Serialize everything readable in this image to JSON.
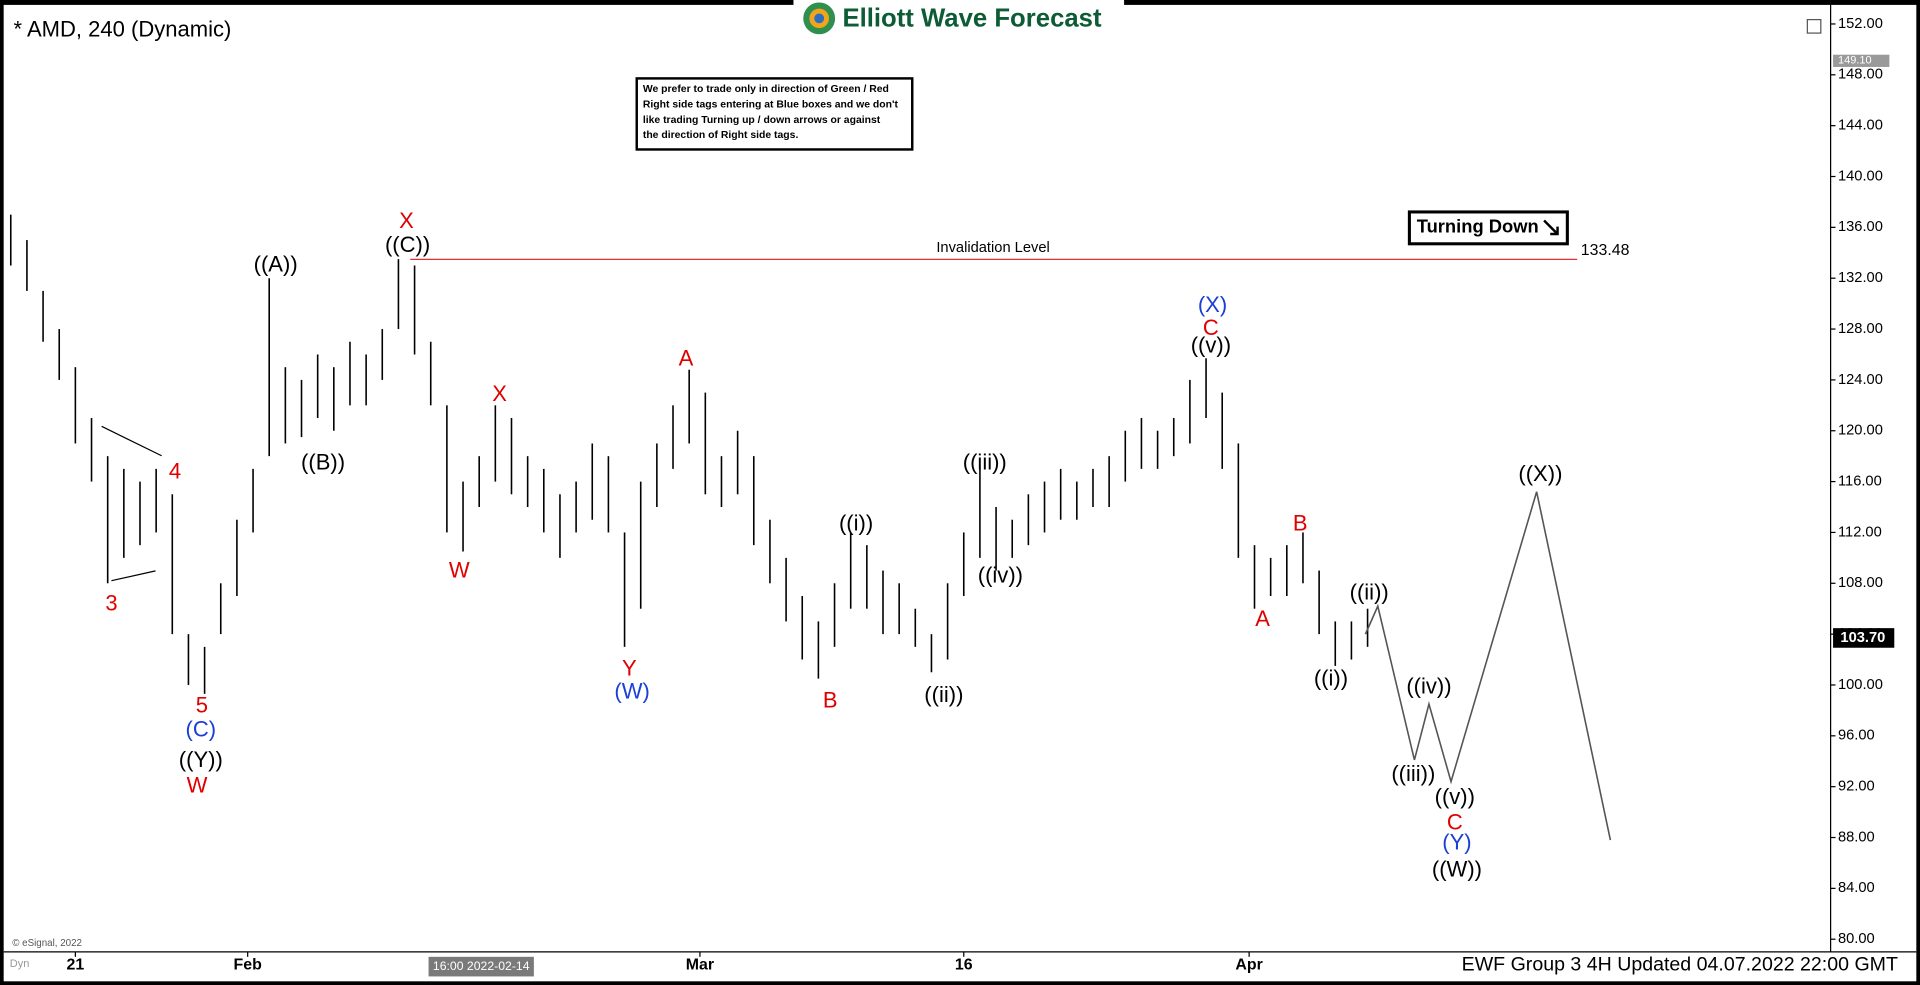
{
  "chart_data": {
    "type": "hilo",
    "title": "* AMD, 240 (Dynamic)",
    "logo": "Elliott Wave Forecast",
    "note": [
      "We prefer to trade only in direction of Green / Red",
      "Right side tags entering at Blue boxes and we don't",
      "like trading Turning up / down arrows or against",
      "the direction of Right side tags."
    ],
    "tag": "Turning Down",
    "footer": "EWF Group 3 4H Updated 04.07.2022 22:00 GMT",
    "copyright": "© eSignal, 2022",
    "corner": "Dyn",
    "crosshair_label": "16:00 2022-02-14",
    "color": "#000000",
    "xlim": [
      -2,
      338
    ],
    "ylim": [
      79,
      153.5
    ],
    "xticks": [
      {
        "value": 12,
        "label": "21"
      },
      {
        "value": 44,
        "label": "Feb"
      },
      {
        "value": 128,
        "label": "Mar"
      },
      {
        "value": 177,
        "label": "16"
      },
      {
        "value": 230,
        "label": "Apr"
      }
    ],
    "yticks": [
      {
        "value": 152,
        "label": "152.00"
      },
      {
        "value": 148,
        "label": "148.00"
      },
      {
        "value": 144,
        "label": "144.00"
      },
      {
        "value": 140,
        "label": "140.00"
      },
      {
        "value": 136,
        "label": "136.00"
      },
      {
        "value": 132,
        "label": "132.00"
      },
      {
        "value": 128,
        "label": "128.00"
      },
      {
        "value": 124,
        "label": "124.00"
      },
      {
        "value": 120,
        "label": "120.00"
      },
      {
        "value": 116,
        "label": "116.00"
      },
      {
        "value": 112,
        "label": "112.00"
      },
      {
        "value": 108,
        "label": "108.00"
      },
      {
        "value": 104,
        "label": "104.00"
      },
      {
        "value": 100,
        "label": "100.00"
      },
      {
        "value": 96,
        "label": "96.00"
      },
      {
        "value": 92,
        "label": "92.00"
      },
      {
        "value": 88,
        "label": "88.00"
      },
      {
        "value": 84,
        "label": "84.00"
      },
      {
        "value": 80,
        "label": "80.00"
      }
    ],
    "x": [
      0,
      3,
      6,
      9,
      12,
      15,
      18,
      21,
      24,
      27,
      30,
      33,
      36,
      39,
      42,
      45,
      48,
      51,
      54,
      57,
      60,
      63,
      66,
      69,
      72,
      75,
      78,
      81,
      84,
      87,
      90,
      93,
      96,
      99,
      102,
      105,
      108,
      111,
      114,
      117,
      120,
      123,
      126,
      129,
      132,
      135,
      138,
      141,
      144,
      147,
      150,
      153,
      156,
      159,
      162,
      165,
      168,
      171,
      174,
      177,
      180,
      183,
      186,
      189,
      192,
      195,
      198,
      201,
      204,
      207,
      210,
      213,
      216,
      219,
      222,
      225,
      228,
      231,
      234,
      237,
      240,
      243,
      246,
      249,
      252
    ],
    "high": [
      137,
      135,
      131,
      128,
      125,
      121,
      118,
      117,
      116,
      117,
      115,
      104,
      103,
      108,
      113,
      117,
      132,
      125,
      124,
      126,
      125,
      127,
      126,
      128,
      133.5,
      133,
      127,
      122,
      116,
      118,
      122,
      121,
      118,
      117,
      115,
      116,
      119,
      118,
      112,
      116,
      119,
      122,
      124.8,
      123,
      118,
      120,
      118,
      113,
      110,
      107,
      105,
      108,
      112,
      111,
      109,
      108,
      106,
      104,
      108,
      112,
      117,
      114,
      113,
      115,
      116,
      117,
      116,
      117,
      118,
      120,
      121,
      120,
      121,
      124,
      125.7,
      123,
      119,
      111,
      110,
      111,
      112,
      109,
      105,
      105,
      106
    ],
    "low": [
      133,
      131,
      127,
      124,
      119,
      116,
      108,
      110,
      111,
      112,
      104,
      100,
      99.3,
      104,
      107,
      112,
      118,
      119,
      119.5,
      121,
      120,
      122,
      122,
      124,
      128,
      126,
      122,
      112,
      110.5,
      114,
      116,
      115,
      114,
      112,
      110,
      112,
      113,
      112,
      103,
      106,
      114,
      117,
      119,
      115,
      114,
      115,
      111,
      108,
      105,
      102,
      100.5,
      103,
      106,
      106,
      104,
      104,
      103,
      101,
      102,
      107,
      110,
      109,
      110,
      111,
      112,
      113,
      113,
      114,
      114,
      116,
      117,
      117,
      118,
      119,
      121,
      117,
      110,
      106,
      107,
      107,
      108,
      104,
      101.5,
      102,
      103
    ],
    "projection": {
      "x": [
        251.6,
        253.9,
        260.7,
        263.4,
        267.5,
        283.4,
        297.1
      ],
      "y": [
        104.0,
        106.2,
        94.1,
        98.5,
        92.4,
        115.2,
        87.8
      ],
      "color": "#555555"
    },
    "invalidation": {
      "label": "Invalidation Level",
      "value": 133.48,
      "color": "#e03030"
    },
    "last_price": {
      "value": 103.7,
      "label": "103.70"
    },
    "high_tag": {
      "value": 149.1,
      "label": "149.10"
    },
    "annotations": [
      {
        "text": "X",
        "x": 73.5,
        "y": 136.4,
        "color": "#e00000"
      },
      {
        "text": "((C))",
        "x": 73.7,
        "y": 134.5,
        "color": "#000000"
      },
      {
        "text": "((A))",
        "x": 49.2,
        "y": 133.0,
        "color": "#000000"
      },
      {
        "text": "((B))",
        "x": 58.0,
        "y": 117.4,
        "color": "#000000"
      },
      {
        "text": "4",
        "x": 30.5,
        "y": 116.7,
        "color": "#e00000"
      },
      {
        "text": "3",
        "x": 18.7,
        "y": 106.3,
        "color": "#e00000"
      },
      {
        "text": "5",
        "x": 35.5,
        "y": 98.3,
        "color": "#e00000"
      },
      {
        "text": "(C)",
        "x": 35.3,
        "y": 96.4,
        "color": "#1a3fd6"
      },
      {
        "text": "((Y))",
        "x": 35.3,
        "y": 94.0,
        "color": "#000000"
      },
      {
        "text": "W",
        "x": 34.6,
        "y": 92.0,
        "color": "#e00000"
      },
      {
        "text": "X",
        "x": 90.8,
        "y": 122.8,
        "color": "#e00000"
      },
      {
        "text": "W",
        "x": 83.3,
        "y": 108.9,
        "color": "#e00000"
      },
      {
        "text": "A",
        "x": 125.4,
        "y": 125.6,
        "color": "#e00000"
      },
      {
        "text": "Y",
        "x": 114.9,
        "y": 101.2,
        "color": "#e00000"
      },
      {
        "text": "(W)",
        "x": 115.4,
        "y": 99.4,
        "color": "#1a3fd6"
      },
      {
        "text": "B",
        "x": 152.2,
        "y": 98.7,
        "color": "#e00000"
      },
      {
        "text": "((i))",
        "x": 157.0,
        "y": 112.6,
        "color": "#000000"
      },
      {
        "text": "((ii))",
        "x": 173.3,
        "y": 99.1,
        "color": "#000000"
      },
      {
        "text": "((iii))",
        "x": 180.9,
        "y": 117.4,
        "color": "#000000"
      },
      {
        "text": "((iv))",
        "x": 183.8,
        "y": 108.5,
        "color": "#000000"
      },
      {
        "text": "(X)",
        "x": 223.2,
        "y": 129.8,
        "color": "#1a3fd6"
      },
      {
        "text": "C",
        "x": 222.9,
        "y": 128.0,
        "color": "#e00000"
      },
      {
        "text": "((v))",
        "x": 222.9,
        "y": 126.6,
        "color": "#000000"
      },
      {
        "text": "A",
        "x": 232.5,
        "y": 105.1,
        "color": "#e00000"
      },
      {
        "text": "B",
        "x": 239.5,
        "y": 112.6,
        "color": "#e00000"
      },
      {
        "text": "((i))",
        "x": 245.2,
        "y": 100.4,
        "color": "#000000"
      },
      {
        "text": "((ii))",
        "x": 252.3,
        "y": 107.2,
        "color": "#000000"
      },
      {
        "text": "((iii))",
        "x": 260.5,
        "y": 92.9,
        "color": "#000000"
      },
      {
        "text": "((iv))",
        "x": 263.4,
        "y": 99.8,
        "color": "#000000"
      },
      {
        "text": "((v))",
        "x": 268.2,
        "y": 91.1,
        "color": "#000000"
      },
      {
        "text": "C",
        "x": 268.2,
        "y": 89.1,
        "color": "#e00000"
      },
      {
        "text": "(Y)",
        "x": 268.6,
        "y": 87.5,
        "color": "#1a3fd6"
      },
      {
        "text": "((W))",
        "x": 268.6,
        "y": 85.4,
        "color": "#000000"
      },
      {
        "text": "((X))",
        "x": 284.1,
        "y": 116.5,
        "color": "#000000"
      }
    ]
  }
}
